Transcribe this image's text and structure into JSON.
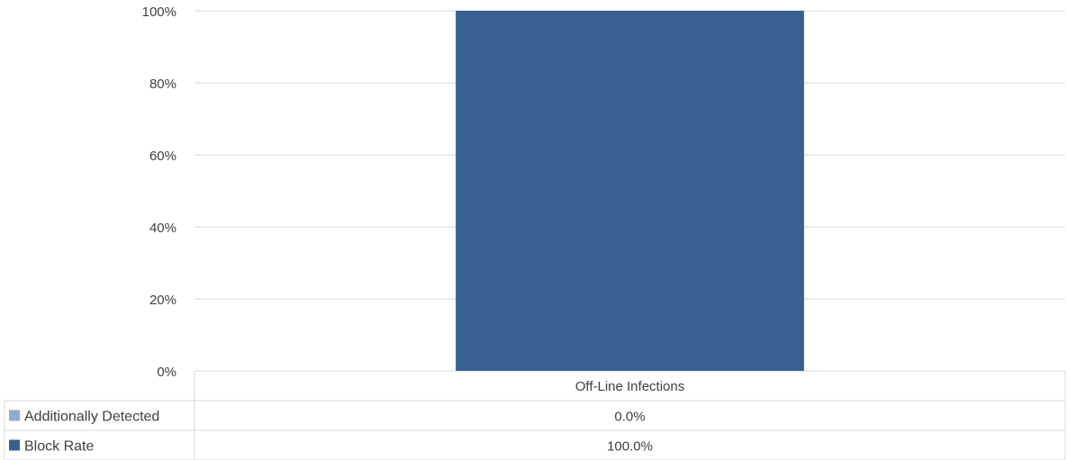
{
  "chart_data": {
    "type": "bar",
    "stacked": true,
    "categories": [
      "Off-Line Infections"
    ],
    "series": [
      {
        "name": "Block Rate",
        "values": [
          100.0
        ],
        "label": "100.0%",
        "color": "#386192"
      },
      {
        "name": "Additionally Detected",
        "values": [
          0.0
        ],
        "label": "0.0%",
        "color": "#8faacc"
      }
    ],
    "yticks": [
      "0%",
      "20%",
      "40%",
      "60%",
      "80%",
      "100%"
    ],
    "ylim": [
      0,
      100
    ],
    "grid": true,
    "legend": "data-table-below"
  }
}
